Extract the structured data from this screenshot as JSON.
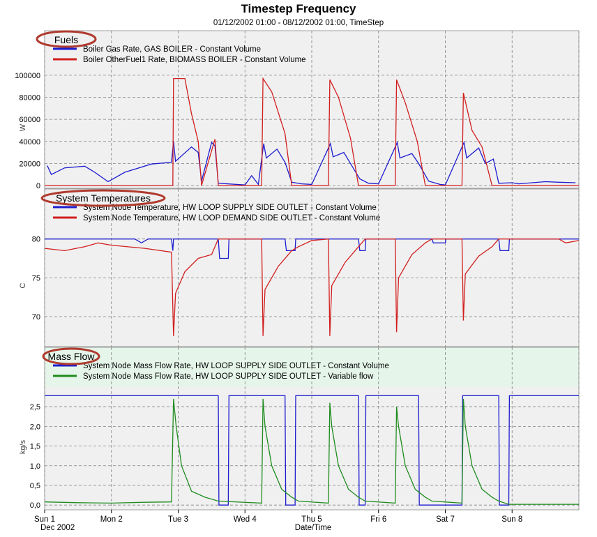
{
  "title": "Timestep Frequency",
  "subtitle": "01/12/2002 01:00 - 08/12/2002 01:00, TimeStep",
  "x_axis": {
    "label": "Date/Time",
    "ticks": [
      "Sun 1",
      "Mon 2",
      "Tue 3",
      "Wed 4",
      "Thu 5",
      "Fri 6",
      "Sat 7",
      "Sun 8"
    ],
    "sub_label": "Dec 2002"
  },
  "colors": {
    "panel_bg": "#f0f0f0",
    "mass_header_bg": "#e5f5ea",
    "grid": "#808080",
    "highlight_ellipse": "#b03a2e",
    "blue": "#1c1cd0",
    "red": "#d21e1e",
    "green": "#1e8c1e"
  },
  "chart_data": [
    {
      "type": "line",
      "title": "Fuels",
      "ylabel": "W",
      "ylim": [
        0,
        105000
      ],
      "yticks": [
        "0",
        "20000",
        "40000",
        "60000",
        "80000",
        "100000"
      ],
      "x_unit": "days from Sun 1 00:00",
      "grid": true,
      "series": [
        {
          "name": "Boiler Gas Rate, GAS BOILER - Constant Volume",
          "color": "#1c1cd0",
          "points": [
            [
              0.04,
              18000
            ],
            [
              0.1,
              10000
            ],
            [
              0.3,
              16000
            ],
            [
              0.6,
              17500
            ],
            [
              0.75,
              12000
            ],
            [
              0.95,
              3500
            ],
            [
              1.2,
              12000
            ],
            [
              1.6,
              19500
            ],
            [
              1.9,
              21000
            ],
            [
              1.93,
              40000
            ],
            [
              1.96,
              22000
            ],
            [
              2.2,
              35000
            ],
            [
              2.3,
              30000
            ],
            [
              2.35,
              4000
            ],
            [
              2.5,
              39000
            ],
            [
              2.55,
              36000
            ],
            [
              2.6,
              2000
            ],
            [
              3.0,
              500
            ],
            [
              3.1,
              9000
            ],
            [
              3.2,
              1000
            ],
            [
              3.28,
              38000
            ],
            [
              3.32,
              25000
            ],
            [
              3.48,
              33000
            ],
            [
              3.6,
              21000
            ],
            [
              3.7,
              3000
            ],
            [
              3.85,
              1500
            ],
            [
              4.0,
              1000
            ],
            [
              4.28,
              38000
            ],
            [
              4.32,
              26000
            ],
            [
              4.48,
              30000
            ],
            [
              4.58,
              20000
            ],
            [
              4.72,
              6000
            ],
            [
              4.85,
              2000
            ],
            [
              5.0,
              1500
            ],
            [
              5.28,
              39000
            ],
            [
              5.32,
              25000
            ],
            [
              5.5,
              29000
            ],
            [
              5.6,
              20000
            ],
            [
              5.75,
              4000
            ],
            [
              5.92,
              1000
            ],
            [
              6.0,
              500
            ],
            [
              6.28,
              39000
            ],
            [
              6.32,
              25000
            ],
            [
              6.5,
              34000
            ],
            [
              6.6,
              20000
            ],
            [
              6.72,
              24000
            ],
            [
              6.8,
              2000
            ],
            [
              7.0,
              2500
            ],
            [
              7.1,
              1500
            ],
            [
              7.3,
              2500
            ],
            [
              7.5,
              3500
            ],
            [
              7.7,
              3000
            ],
            [
              7.95,
              2500
            ]
          ]
        },
        {
          "name": "Boiler OtherFuel1 Rate, BIOMASS BOILER - Constant Volume",
          "color": "#d21e1e",
          "points": [
            [
              0.0,
              0
            ],
            [
              1.92,
              0
            ],
            [
              1.93,
              97000
            ],
            [
              2.1,
              97000
            ],
            [
              2.2,
              65000
            ],
            [
              2.3,
              40000
            ],
            [
              2.35,
              0
            ],
            [
              2.55,
              42000
            ],
            [
              2.6,
              0
            ],
            [
              3.25,
              0
            ],
            [
              3.27,
              97000
            ],
            [
              3.4,
              85000
            ],
            [
              3.6,
              47000
            ],
            [
              3.7,
              0
            ],
            [
              4.25,
              0
            ],
            [
              4.27,
              96000
            ],
            [
              4.4,
              80000
            ],
            [
              4.58,
              43000
            ],
            [
              4.7,
              0
            ],
            [
              5.25,
              0
            ],
            [
              5.27,
              96000
            ],
            [
              5.4,
              75000
            ],
            [
              5.58,
              40000
            ],
            [
              5.7,
              0
            ],
            [
              6.25,
              0
            ],
            [
              6.27,
              84000
            ],
            [
              6.4,
              50000
            ],
            [
              6.55,
              35000
            ],
            [
              6.7,
              0
            ],
            [
              8.0,
              0
            ]
          ]
        }
      ]
    },
    {
      "type": "line",
      "title": "System Temperatures",
      "ylabel": "C",
      "ylim": [
        66.5,
        81.5
      ],
      "yticks": [
        "70",
        "75",
        "80"
      ],
      "x_unit": "days from Sun 1 00:00",
      "grid": true,
      "series": [
        {
          "name": "System Node Temperature, HW LOOP SUPPLY SIDE OUTLET - Constant Volume",
          "color": "#1c1cd0",
          "points": [
            [
              0.0,
              80
            ],
            [
              1.35,
              80
            ],
            [
              1.45,
              79.5
            ],
            [
              1.55,
              80
            ],
            [
              1.9,
              80
            ],
            [
              1.92,
              78.5
            ],
            [
              1.93,
              80
            ],
            [
              2.6,
              80
            ],
            [
              2.62,
              77.5
            ],
            [
              2.75,
              77.5
            ],
            [
              2.76,
              80
            ],
            [
              3.6,
              80
            ],
            [
              3.62,
              78.5
            ],
            [
              3.75,
              78.5
            ],
            [
              3.76,
              80
            ],
            [
              4.7,
              80
            ],
            [
              4.72,
              78.5
            ],
            [
              4.8,
              78.5
            ],
            [
              4.81,
              80
            ],
            [
              5.8,
              80
            ],
            [
              5.82,
              79.5
            ],
            [
              6.0,
              79.5
            ],
            [
              6.01,
              80
            ],
            [
              6.8,
              80
            ],
            [
              6.82,
              78.5
            ],
            [
              6.95,
              78.5
            ],
            [
              6.96,
              80
            ],
            [
              8.0,
              80
            ]
          ]
        },
        {
          "name": "System Node Temperature, HW LOOP DEMAND SIDE OUTLET - Constant Volume",
          "color": "#d21e1e",
          "points": [
            [
              0.0,
              78.8
            ],
            [
              0.3,
              78.5
            ],
            [
              0.6,
              79.0
            ],
            [
              0.8,
              79.5
            ],
            [
              1.0,
              79.2
            ],
            [
              1.5,
              78.8
            ],
            [
              1.9,
              78.3
            ],
            [
              1.93,
              67.5
            ],
            [
              1.96,
              73.0
            ],
            [
              2.1,
              75.8
            ],
            [
              2.3,
              77.5
            ],
            [
              2.5,
              78.0
            ],
            [
              2.6,
              80
            ],
            [
              3.25,
              80
            ],
            [
              3.27,
              67.5
            ],
            [
              3.3,
              73.5
            ],
            [
              3.5,
              76.5
            ],
            [
              3.7,
              78.5
            ],
            [
              3.8,
              79.0
            ],
            [
              4.0,
              79.8
            ],
            [
              4.25,
              80
            ],
            [
              4.27,
              67.5
            ],
            [
              4.3,
              74.0
            ],
            [
              4.5,
              77.0
            ],
            [
              4.7,
              79.0
            ],
            [
              4.8,
              80
            ],
            [
              5.25,
              80
            ],
            [
              5.27,
              68.0
            ],
            [
              5.3,
              75.0
            ],
            [
              5.5,
              78.0
            ],
            [
              5.7,
              79.5
            ],
            [
              5.8,
              80
            ],
            [
              6.25,
              80
            ],
            [
              6.27,
              69.5
            ],
            [
              6.3,
              75.5
            ],
            [
              6.5,
              77.8
            ],
            [
              6.7,
              79.0
            ],
            [
              6.8,
              80
            ],
            [
              7.0,
              80
            ],
            [
              7.7,
              80
            ],
            [
              7.8,
              79.5
            ],
            [
              8.0,
              79.8
            ]
          ]
        }
      ]
    },
    {
      "type": "line",
      "title": "Mass Flow",
      "ylabel": "kg/s",
      "ylim": [
        -0.05,
        3.0
      ],
      "yticks": [
        "0,0",
        "0,5",
        "1,0",
        "1,5",
        "2,0",
        "2,5"
      ],
      "x_unit": "days from Sun 1 00:00",
      "grid": true,
      "series": [
        {
          "name": "System Node Mass Flow Rate, HW LOOP SUPPLY SIDE OUTLET - Constant Volume",
          "color": "#1c1cd0",
          "points": [
            [
              0.0,
              2.78
            ],
            [
              2.6,
              2.78
            ],
            [
              2.61,
              0.0
            ],
            [
              2.75,
              0.0
            ],
            [
              2.76,
              2.78
            ],
            [
              3.6,
              2.78
            ],
            [
              3.61,
              0.0
            ],
            [
              3.75,
              0.0
            ],
            [
              3.76,
              2.78
            ],
            [
              4.7,
              2.78
            ],
            [
              4.71,
              0.0
            ],
            [
              4.8,
              0.0
            ],
            [
              4.81,
              2.78
            ],
            [
              5.6,
              2.78
            ],
            [
              5.61,
              0.0
            ],
            [
              6.25,
              0.0
            ],
            [
              6.26,
              2.78
            ],
            [
              6.8,
              2.78
            ],
            [
              6.81,
              0.0
            ],
            [
              6.95,
              0.0
            ],
            [
              6.96,
              2.78
            ],
            [
              8.0,
              2.78
            ]
          ]
        },
        {
          "name": "System Node Mass Flow Rate, HW LOOP SUPPLY SIDE OUTLET - Variable flow",
          "color": "#1e8c1e",
          "points": [
            [
              0.0,
              0.08
            ],
            [
              0.5,
              0.06
            ],
            [
              1.0,
              0.05
            ],
            [
              1.5,
              0.07
            ],
            [
              1.9,
              0.08
            ],
            [
              1.93,
              2.7
            ],
            [
              1.97,
              2.0
            ],
            [
              2.05,
              1.0
            ],
            [
              2.2,
              0.35
            ],
            [
              2.4,
              0.2
            ],
            [
              2.6,
              0.1
            ],
            [
              3.25,
              0.05
            ],
            [
              3.27,
              2.7
            ],
            [
              3.3,
              2.0
            ],
            [
              3.4,
              1.0
            ],
            [
              3.55,
              0.4
            ],
            [
              3.7,
              0.2
            ],
            [
              3.8,
              0.1
            ],
            [
              4.25,
              0.05
            ],
            [
              4.27,
              2.6
            ],
            [
              4.3,
              2.0
            ],
            [
              4.4,
              1.0
            ],
            [
              4.55,
              0.4
            ],
            [
              4.7,
              0.2
            ],
            [
              4.8,
              0.1
            ],
            [
              5.25,
              0.05
            ],
            [
              5.27,
              2.5
            ],
            [
              5.3,
              2.0
            ],
            [
              5.4,
              1.0
            ],
            [
              5.55,
              0.4
            ],
            [
              5.7,
              0.2
            ],
            [
              5.8,
              0.1
            ],
            [
              6.25,
              0.05
            ],
            [
              6.27,
              2.7
            ],
            [
              6.3,
              2.0
            ],
            [
              6.4,
              1.0
            ],
            [
              6.55,
              0.4
            ],
            [
              6.7,
              0.2
            ],
            [
              6.8,
              0.1
            ],
            [
              6.95,
              0.02
            ],
            [
              8.0,
              0.02
            ]
          ]
        }
      ]
    }
  ]
}
